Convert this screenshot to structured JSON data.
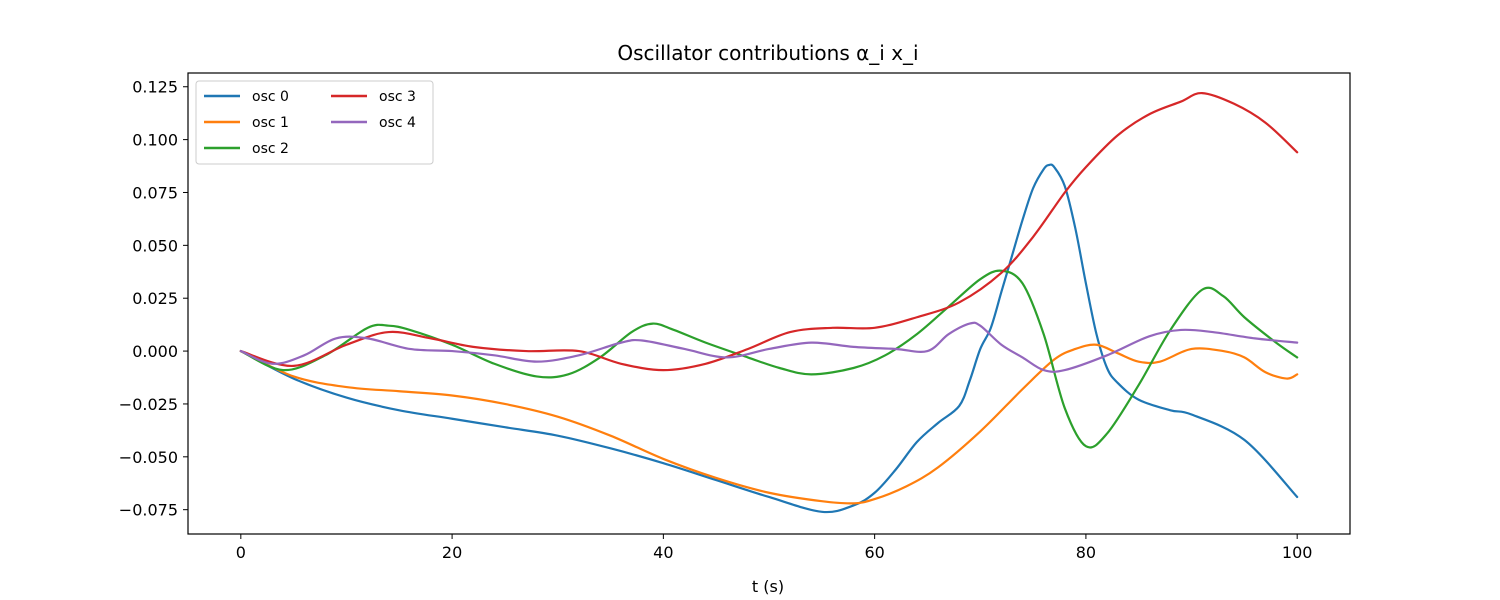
{
  "chart_data": {
    "type": "line",
    "title": "Oscillator contributions α_i x_i",
    "xlabel": "t (s)",
    "ylabel": "",
    "xlim": [
      -5,
      105
    ],
    "ylim": [
      -0.0865,
      0.1315
    ],
    "xticks": [
      0,
      20,
      40,
      60,
      80,
      100
    ],
    "xtick_labels": [
      "0",
      "20",
      "40",
      "60",
      "80",
      "100"
    ],
    "yticks": [
      -0.075,
      -0.05,
      -0.025,
      0.0,
      0.025,
      0.05,
      0.075,
      0.1,
      0.125
    ],
    "ytick_labels": [
      "−0.075",
      "−0.050",
      "−0.025",
      "0.000",
      "0.025",
      "0.050",
      "0.075",
      "0.100",
      "0.125"
    ],
    "grid": false,
    "legend": {
      "position": "top-left",
      "columns": 2
    },
    "series": [
      {
        "name": "osc 0",
        "color": "#1f77b4",
        "x": [
          0,
          5,
          10,
          15,
          20,
          25,
          30,
          35,
          40,
          45,
          50,
          55,
          58,
          60,
          62,
          64,
          66,
          68,
          69,
          70,
          71,
          72,
          73,
          74,
          75,
          76,
          76.5,
          77,
          78,
          79,
          80,
          81,
          82,
          83,
          85,
          88,
          90,
          95,
          100
        ],
        "y": [
          0.0,
          -0.013,
          -0.022,
          -0.028,
          -0.032,
          -0.036,
          -0.04,
          -0.046,
          -0.053,
          -0.061,
          -0.069,
          -0.076,
          -0.073,
          -0.067,
          -0.056,
          -0.043,
          -0.034,
          -0.026,
          -0.014,
          0.001,
          0.011,
          0.028,
          0.045,
          0.062,
          0.077,
          0.086,
          0.088,
          0.087,
          0.078,
          0.058,
          0.032,
          0.008,
          -0.008,
          -0.015,
          -0.023,
          -0.028,
          -0.03,
          -0.042,
          -0.069
        ]
      },
      {
        "name": "osc 1",
        "color": "#ff7f0e",
        "x": [
          0,
          5,
          10,
          15,
          20,
          25,
          30,
          35,
          40,
          45,
          50,
          55,
          58,
          60,
          63,
          66,
          70,
          74,
          77,
          79,
          81,
          83,
          85,
          87,
          90,
          93,
          95,
          97,
          99,
          100
        ],
        "y": [
          0.0,
          -0.012,
          -0.017,
          -0.019,
          -0.021,
          -0.025,
          -0.031,
          -0.04,
          -0.051,
          -0.06,
          -0.067,
          -0.071,
          -0.072,
          -0.07,
          -0.064,
          -0.055,
          -0.038,
          -0.018,
          -0.004,
          0.001,
          0.003,
          -0.001,
          -0.005,
          -0.005,
          0.001,
          0.0,
          -0.003,
          -0.01,
          -0.013,
          -0.011
        ]
      },
      {
        "name": "osc 2",
        "color": "#2ca02c",
        "x": [
          0,
          4,
          8,
          12,
          14,
          16,
          20,
          24,
          28,
          31,
          34,
          37,
          39,
          41,
          44,
          48,
          51,
          54,
          58,
          61,
          64,
          67,
          70,
          72,
          74,
          76,
          78,
          80,
          82,
          85,
          88,
          91,
          93,
          95,
          98,
          100
        ],
        "y": [
          0.0,
          -0.009,
          -0.002,
          0.011,
          0.012,
          0.01,
          0.003,
          -0.006,
          -0.012,
          -0.011,
          -0.003,
          0.009,
          0.013,
          0.01,
          0.004,
          -0.003,
          -0.008,
          -0.011,
          -0.008,
          -0.002,
          0.008,
          0.021,
          0.034,
          0.038,
          0.032,
          0.008,
          -0.027,
          -0.045,
          -0.039,
          -0.016,
          0.01,
          0.029,
          0.026,
          0.016,
          0.004,
          -0.003
        ]
      },
      {
        "name": "osc 3",
        "color": "#d62728",
        "x": [
          0,
          5,
          10,
          14,
          18,
          22,
          27,
          32,
          36,
          40,
          44,
          48,
          52,
          56,
          60,
          64,
          68,
          72,
          75,
          78,
          80,
          83,
          86,
          89,
          91,
          94,
          97,
          100
        ],
        "y": [
          0.0,
          -0.007,
          0.003,
          0.009,
          0.006,
          0.002,
          0.0,
          0.0,
          -0.006,
          -0.009,
          -0.006,
          0.001,
          0.009,
          0.011,
          0.011,
          0.016,
          0.023,
          0.037,
          0.054,
          0.075,
          0.087,
          0.102,
          0.112,
          0.118,
          0.122,
          0.117,
          0.108,
          0.094
        ]
      },
      {
        "name": "osc 4",
        "color": "#9467bd",
        "x": [
          0,
          3,
          6,
          9,
          12,
          16,
          20,
          24,
          28,
          32,
          36,
          38,
          42,
          46,
          50,
          54,
          58,
          62,
          65,
          67,
          69,
          70,
          72,
          74,
          76,
          78,
          82,
          86,
          89,
          92,
          96,
          100
        ],
        "y": [
          0.0,
          -0.006,
          -0.002,
          0.006,
          0.006,
          0.001,
          0.0,
          -0.002,
          -0.005,
          -0.002,
          0.004,
          0.005,
          0.001,
          -0.003,
          0.001,
          0.004,
          0.002,
          0.001,
          0.0,
          0.008,
          0.013,
          0.012,
          0.003,
          -0.003,
          -0.009,
          -0.009,
          -0.002,
          0.007,
          0.01,
          0.009,
          0.006,
          0.004
        ]
      }
    ]
  }
}
